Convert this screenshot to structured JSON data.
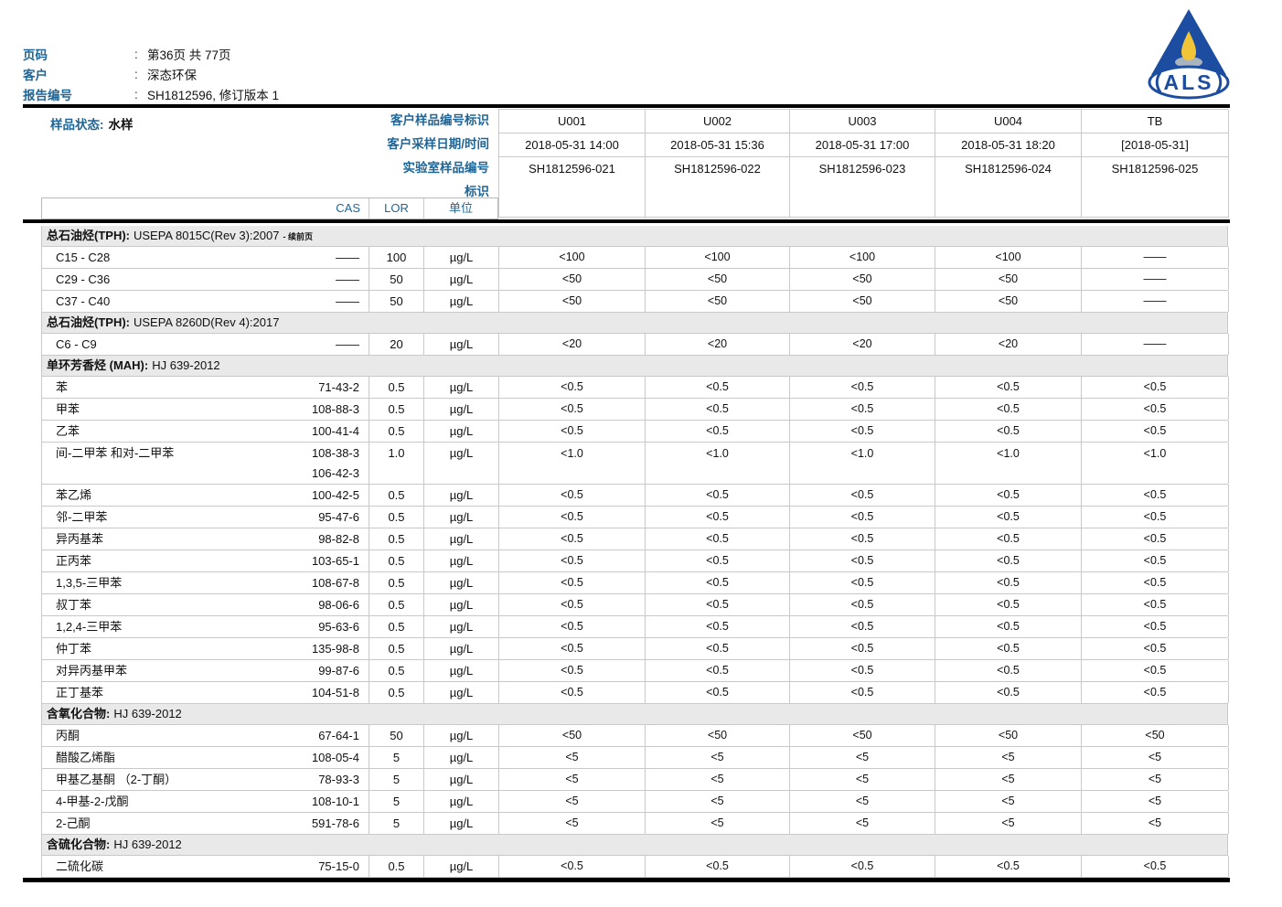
{
  "colors": {
    "label_blue": "#1f6696",
    "logo_blue": "#1c4da0",
    "flame_yellow": "#f2c437",
    "flame_base_gray": "#a8b4c0",
    "section_bg": "#e9e9e9",
    "border_gray": "#c9c9c9"
  },
  "page": {
    "colon": ":",
    "meta": [
      {
        "label": "页码",
        "value": "第36页 共 77页"
      },
      {
        "label": "客户",
        "value": "深态环保"
      },
      {
        "label": "报告编号",
        "value": "SH1812596, 修订版本 1"
      }
    ]
  },
  "logo": {
    "text": "ALS"
  },
  "sample_block": {
    "status_label": "样品状态:",
    "status_value": "水样",
    "row_labels": [
      "客户样品编号标识",
      "客户采样日期/时间",
      "实验室样品编号",
      "标识"
    ],
    "columns": [
      {
        "id": "U001",
        "datetime": "2018-05-31 14:00",
        "lab_no": "SH1812596-021"
      },
      {
        "id": "U002",
        "datetime": "2018-05-31 15:36",
        "lab_no": "SH1812596-022"
      },
      {
        "id": "U003",
        "datetime": "2018-05-31 17:00",
        "lab_no": "SH1812596-023"
      },
      {
        "id": "U004",
        "datetime": "2018-05-31 18:20",
        "lab_no": "SH1812596-024"
      },
      {
        "id": "TB",
        "datetime": "[2018-05-31]",
        "lab_no": "SH1812596-025"
      }
    ]
  },
  "table": {
    "headers": {
      "cas": "CAS",
      "lor": "LOR",
      "unit": "单位"
    },
    "sections": [
      {
        "name": "总石油烃(TPH):",
        "method": "USEPA 8015C(Rev 3):2007",
        "suffix": "- 续前页",
        "rows": [
          {
            "name": "C15 - C28",
            "cas": [
              "——"
            ],
            "lor": "100",
            "unit": "µg/L",
            "values": [
              "<100",
              "<100",
              "<100",
              "<100",
              "——"
            ]
          },
          {
            "name": "C29 - C36",
            "cas": [
              "——"
            ],
            "lor": "50",
            "unit": "µg/L",
            "values": [
              "<50",
              "<50",
              "<50",
              "<50",
              "——"
            ]
          },
          {
            "name": "C37 - C40",
            "cas": [
              "——"
            ],
            "lor": "50",
            "unit": "µg/L",
            "values": [
              "<50",
              "<50",
              "<50",
              "<50",
              "——"
            ]
          }
        ]
      },
      {
        "name": "总石油烃(TPH):",
        "method": "USEPA 8260D(Rev 4):2017",
        "suffix": "",
        "rows": [
          {
            "name": "C6 - C9",
            "cas": [
              "——"
            ],
            "lor": "20",
            "unit": "µg/L",
            "values": [
              "<20",
              "<20",
              "<20",
              "<20",
              "——"
            ]
          }
        ]
      },
      {
        "name": "单环芳香烃 (MAH):",
        "method": "HJ 639-2012",
        "suffix": "",
        "rows": [
          {
            "name": "苯",
            "cas": [
              "71-43-2"
            ],
            "lor": "0.5",
            "unit": "µg/L",
            "values": [
              "<0.5",
              "<0.5",
              "<0.5",
              "<0.5",
              "<0.5"
            ]
          },
          {
            "name": "甲苯",
            "cas": [
              "108-88-3"
            ],
            "lor": "0.5",
            "unit": "µg/L",
            "values": [
              "<0.5",
              "<0.5",
              "<0.5",
              "<0.5",
              "<0.5"
            ]
          },
          {
            "name": "乙苯",
            "cas": [
              "100-41-4"
            ],
            "lor": "0.5",
            "unit": "µg/L",
            "values": [
              "<0.5",
              "<0.5",
              "<0.5",
              "<0.5",
              "<0.5"
            ]
          },
          {
            "name": "间-二甲苯 和对-二甲苯",
            "cas": [
              "108-38-3",
              "106-42-3"
            ],
            "lor": "1.0",
            "unit": "µg/L",
            "values": [
              "<1.0",
              "<1.0",
              "<1.0",
              "<1.0",
              "<1.0"
            ]
          },
          {
            "name": "苯乙烯",
            "cas": [
              "100-42-5"
            ],
            "lor": "0.5",
            "unit": "µg/L",
            "values": [
              "<0.5",
              "<0.5",
              "<0.5",
              "<0.5",
              "<0.5"
            ]
          },
          {
            "name": "邻-二甲苯",
            "cas": [
              "95-47-6"
            ],
            "lor": "0.5",
            "unit": "µg/L",
            "values": [
              "<0.5",
              "<0.5",
              "<0.5",
              "<0.5",
              "<0.5"
            ]
          },
          {
            "name": "异丙基苯",
            "cas": [
              "98-82-8"
            ],
            "lor": "0.5",
            "unit": "µg/L",
            "values": [
              "<0.5",
              "<0.5",
              "<0.5",
              "<0.5",
              "<0.5"
            ]
          },
          {
            "name": "正丙苯",
            "cas": [
              "103-65-1"
            ],
            "lor": "0.5",
            "unit": "µg/L",
            "values": [
              "<0.5",
              "<0.5",
              "<0.5",
              "<0.5",
              "<0.5"
            ]
          },
          {
            "name": "1,3,5-三甲苯",
            "cas": [
              "108-67-8"
            ],
            "lor": "0.5",
            "unit": "µg/L",
            "values": [
              "<0.5",
              "<0.5",
              "<0.5",
              "<0.5",
              "<0.5"
            ]
          },
          {
            "name": "叔丁苯",
            "cas": [
              "98-06-6"
            ],
            "lor": "0.5",
            "unit": "µg/L",
            "values": [
              "<0.5",
              "<0.5",
              "<0.5",
              "<0.5",
              "<0.5"
            ]
          },
          {
            "name": "1,2,4-三甲苯",
            "cas": [
              "95-63-6"
            ],
            "lor": "0.5",
            "unit": "µg/L",
            "values": [
              "<0.5",
              "<0.5",
              "<0.5",
              "<0.5",
              "<0.5"
            ]
          },
          {
            "name": "仲丁苯",
            "cas": [
              "135-98-8"
            ],
            "lor": "0.5",
            "unit": "µg/L",
            "values": [
              "<0.5",
              "<0.5",
              "<0.5",
              "<0.5",
              "<0.5"
            ]
          },
          {
            "name": "对异丙基甲苯",
            "cas": [
              "99-87-6"
            ],
            "lor": "0.5",
            "unit": "µg/L",
            "values": [
              "<0.5",
              "<0.5",
              "<0.5",
              "<0.5",
              "<0.5"
            ]
          },
          {
            "name": "正丁基苯",
            "cas": [
              "104-51-8"
            ],
            "lor": "0.5",
            "unit": "µg/L",
            "values": [
              "<0.5",
              "<0.5",
              "<0.5",
              "<0.5",
              "<0.5"
            ]
          }
        ]
      },
      {
        "name": "含氧化合物:",
        "method": "HJ 639-2012",
        "suffix": "",
        "rows": [
          {
            "name": "丙酮",
            "cas": [
              "67-64-1"
            ],
            "lor": "50",
            "unit": "µg/L",
            "values": [
              "<50",
              "<50",
              "<50",
              "<50",
              "<50"
            ]
          },
          {
            "name": "醋酸乙烯酯",
            "cas": [
              "108-05-4"
            ],
            "lor": "5",
            "unit": "µg/L",
            "values": [
              "<5",
              "<5",
              "<5",
              "<5",
              "<5"
            ]
          },
          {
            "name": "甲基乙基酮 （2-丁酮）",
            "cas": [
              "78-93-3"
            ],
            "lor": "5",
            "unit": "µg/L",
            "values": [
              "<5",
              "<5",
              "<5",
              "<5",
              "<5"
            ]
          },
          {
            "name": "4-甲基-2-戊酮",
            "cas": [
              "108-10-1"
            ],
            "lor": "5",
            "unit": "µg/L",
            "values": [
              "<5",
              "<5",
              "<5",
              "<5",
              "<5"
            ]
          },
          {
            "name": "2-己酮",
            "cas": [
              "591-78-6"
            ],
            "lor": "5",
            "unit": "µg/L",
            "values": [
              "<5",
              "<5",
              "<5",
              "<5",
              "<5"
            ]
          }
        ]
      },
      {
        "name": "含硫化合物:",
        "method": "HJ 639-2012",
        "suffix": "",
        "rows": [
          {
            "name": "二硫化碳",
            "cas": [
              "75-15-0"
            ],
            "lor": "0.5",
            "unit": "µg/L",
            "values": [
              "<0.5",
              "<0.5",
              "<0.5",
              "<0.5",
              "<0.5"
            ]
          }
        ]
      }
    ]
  }
}
